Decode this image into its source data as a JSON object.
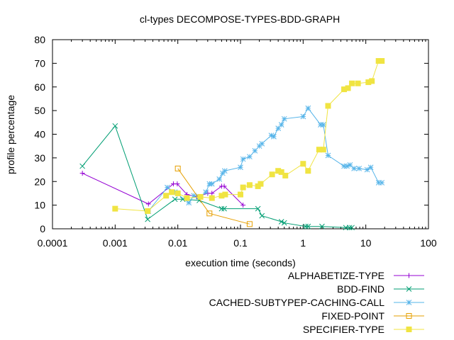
{
  "chart_data": {
    "type": "line",
    "title": "cl-types DECOMPOSE-TYPES-BDD-GRAPH",
    "xlabel": "execution time (seconds)",
    "ylabel": "profile percentage",
    "xscale": "log",
    "xlim": [
      0.0001,
      100
    ],
    "ylim": [
      0,
      80
    ],
    "xticks": [
      0.0001,
      0.001,
      0.01,
      0.1,
      1,
      10,
      100
    ],
    "xtick_labels": [
      "0.0001",
      "0.001",
      "0.01",
      "0.1",
      "1",
      "10",
      "100"
    ],
    "yticks": [
      0,
      10,
      20,
      30,
      40,
      50,
      60,
      70,
      80
    ],
    "ytick_labels": [
      "0",
      "10",
      "20",
      "30",
      "40",
      "50",
      "60",
      "70",
      "80"
    ],
    "grid": false,
    "legend_position": "below plot, right",
    "series": [
      {
        "name": "ALPHABETIZE-TYPE",
        "color": "#9400d3",
        "marker": "plus",
        "points": [
          [
            0.0003,
            23.5
          ],
          [
            0.0034,
            10.5
          ],
          [
            0.0085,
            19
          ],
          [
            0.0098,
            19
          ],
          [
            0.014,
            14.5
          ],
          [
            0.02,
            13.5
          ],
          [
            0.03,
            15
          ],
          [
            0.035,
            15
          ],
          [
            0.05,
            18
          ],
          [
            0.055,
            18
          ],
          [
            0.11,
            10
          ]
        ]
      },
      {
        "name": "BDD-FIND",
        "color": "#009e73",
        "marker": "x",
        "points": [
          [
            0.0003,
            26.5
          ],
          [
            0.001,
            43.5
          ],
          [
            0.0033,
            4
          ],
          [
            0.009,
            12.5
          ],
          [
            0.012,
            12.5
          ],
          [
            0.022,
            12
          ],
          [
            0.05,
            8.5
          ],
          [
            0.055,
            8.5
          ],
          [
            0.19,
            8.5
          ],
          [
            0.22,
            5.5
          ],
          [
            0.45,
            3
          ],
          [
            0.5,
            2.5
          ],
          [
            1.1,
            1
          ],
          [
            1.2,
            1
          ],
          [
            2.0,
            1
          ],
          [
            4.8,
            0.5
          ],
          [
            5.5,
            0.5
          ],
          [
            6.0,
            0.5
          ]
        ]
      },
      {
        "name": "CACHED-SUBTYPEP-CACHING-CALL",
        "color": "#56b4e9",
        "marker": "star",
        "points": [
          [
            0.0034,
            7.5
          ],
          [
            0.0068,
            17.5
          ],
          [
            0.009,
            15.5
          ],
          [
            0.015,
            11
          ],
          [
            0.018,
            14
          ],
          [
            0.022,
            13.5
          ],
          [
            0.028,
            15.5
          ],
          [
            0.032,
            19
          ],
          [
            0.035,
            19
          ],
          [
            0.046,
            21
          ],
          [
            0.052,
            23.5
          ],
          [
            0.056,
            24.5
          ],
          [
            0.1,
            26
          ],
          [
            0.11,
            29.5
          ],
          [
            0.14,
            30.5
          ],
          [
            0.17,
            33
          ],
          [
            0.2,
            35
          ],
          [
            0.22,
            36
          ],
          [
            0.31,
            39.5
          ],
          [
            0.34,
            39
          ],
          [
            0.4,
            42.5
          ],
          [
            0.45,
            44
          ],
          [
            0.5,
            46.5
          ],
          [
            1.0,
            47.5
          ],
          [
            1.2,
            51
          ],
          [
            1.9,
            44
          ],
          [
            2.1,
            44
          ],
          [
            2.5,
            31
          ],
          [
            4.5,
            26.5
          ],
          [
            5.0,
            26.5
          ],
          [
            5.6,
            27
          ],
          [
            6.5,
            25.5
          ],
          [
            7.8,
            25.5
          ],
          [
            10.5,
            25
          ],
          [
            12.0,
            26
          ],
          [
            16.0,
            19.5
          ],
          [
            18.0,
            19.5
          ]
        ]
      },
      {
        "name": "FIXED-POINT",
        "color": "#e69f00",
        "marker": "open-square",
        "points": [
          [
            0.01,
            25.5
          ],
          [
            0.032,
            6.5
          ],
          [
            0.14,
            2
          ]
        ]
      },
      {
        "name": "SPECIFIER-TYPE",
        "color": "#f0e442",
        "marker": "filled-square",
        "points": [
          [
            0.001,
            8.5
          ],
          [
            0.0033,
            7.5
          ],
          [
            0.0065,
            14
          ],
          [
            0.008,
            15.5
          ],
          [
            0.01,
            15
          ],
          [
            0.014,
            13
          ],
          [
            0.023,
            13.5
          ],
          [
            0.035,
            13
          ],
          [
            0.05,
            14
          ],
          [
            0.057,
            14.5
          ],
          [
            0.1,
            14.5
          ],
          [
            0.11,
            17.5
          ],
          [
            0.14,
            18.5
          ],
          [
            0.19,
            18
          ],
          [
            0.21,
            19
          ],
          [
            0.32,
            23
          ],
          [
            0.4,
            24.5
          ],
          [
            0.45,
            24
          ],
          [
            0.52,
            22.5
          ],
          [
            1.0,
            27.5
          ],
          [
            1.2,
            24.5
          ],
          [
            1.8,
            33.5
          ],
          [
            2.1,
            33.5
          ],
          [
            2.5,
            52
          ],
          [
            4.5,
            59
          ],
          [
            5.2,
            59.5
          ],
          [
            6.0,
            61.5
          ],
          [
            7.5,
            61.5
          ],
          [
            11.0,
            62
          ],
          [
            12.5,
            62.5
          ],
          [
            16.0,
            71
          ],
          [
            18.0,
            71
          ]
        ]
      }
    ]
  }
}
